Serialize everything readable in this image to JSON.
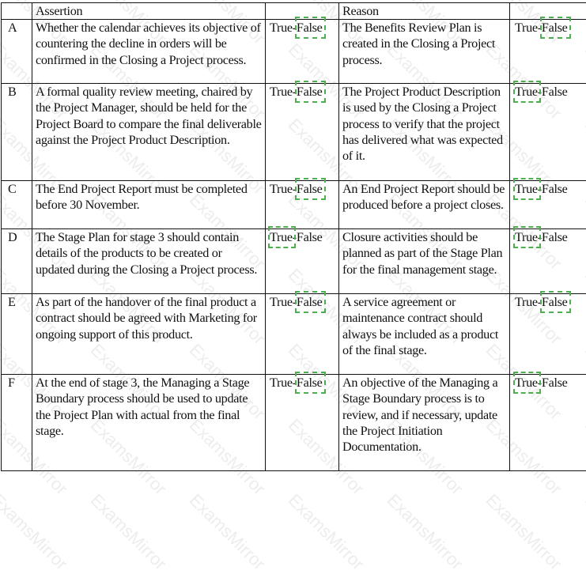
{
  "headers": {
    "letter": "",
    "assertion": "Assertion",
    "answer1": "",
    "reason": "Reason",
    "answer2": ""
  },
  "options": {
    "true": "True",
    "sep": "-",
    "false": "False"
  },
  "accent_color": "#4caf50",
  "rows": [
    {
      "letter": "A",
      "assertion": "Whether the calendar achieves its objective of countering the decline in orders will be confirmed in the Closing a Project process.",
      "assertion_selected": "False",
      "reason": "The Benefits Review Plan is created in the Closing a Project process.",
      "reason_selected": "False"
    },
    {
      "letter": "B",
      "assertion": "A formal quality review meeting, chaired by the Project Manager, should be held for the Project Board to compare the final deliverable against the Project Product Description.",
      "assertion_selected": "False",
      "reason": "The Project Product Description is used by the Closing a Project process to verify that the project has delivered what was expected of it.",
      "reason_selected": "True"
    },
    {
      "letter": "C",
      "assertion": "The End Project Report must be completed before 30 November.",
      "assertion_selected": "False",
      "reason": "An End Project Report should be produced before a project closes.",
      "reason_selected": "True"
    },
    {
      "letter": "D",
      "assertion": "The Stage Plan for stage 3 should contain details of the products to be created or updated during the Closing a Project process.",
      "assertion_selected": "True",
      "reason": "Closure activities should be planned as part of the Stage Plan for the final management stage.",
      "reason_selected": "True"
    },
    {
      "letter": "E",
      "assertion": "As part of the handover of the final product a contract should be agreed with Marketing for ongoing support of this product.",
      "assertion_selected": "False",
      "reason": "A service agreement or maintenance contract should always be included as a product of the final stage.",
      "reason_selected": "False"
    },
    {
      "letter": "F",
      "assertion": "At the end of stage 3, the Managing a Stage Boundary process should be used to update the Project Plan with actual from the final stage.",
      "assertion_selected": "False",
      "reason": "An objective of the Managing a Stage Boundary process is to review, and if necessary, update the Project Initiation Documentation.",
      "reason_selected": "True"
    }
  ],
  "watermark": "ExamsMirror"
}
